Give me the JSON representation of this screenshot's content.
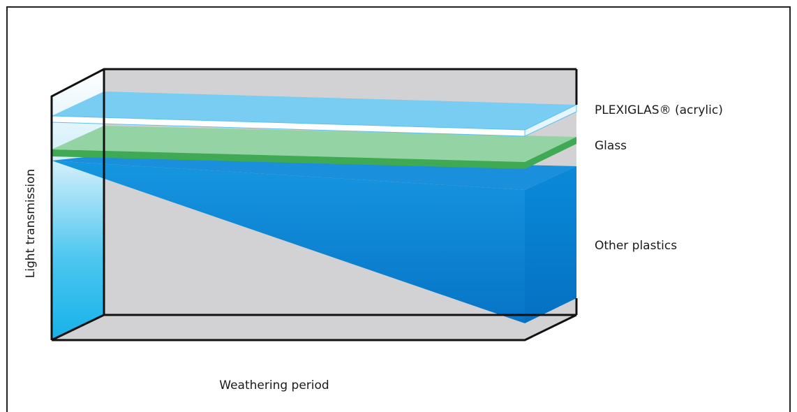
{
  "chart_data": {
    "type": "area",
    "ylabel": "Light transmission",
    "xlabel": "Weathering period",
    "series": [
      {
        "name": "PLEXIGLAS® (acrylic)",
        "trend": "constant",
        "color": "#79cdf3"
      },
      {
        "name": "Glass",
        "trend": "slight decrease",
        "color": "#8dd19f"
      },
      {
        "name": "Other plastics",
        "trend": "strong decrease",
        "color": "#0a86d6"
      }
    ],
    "grid": false,
    "legend": "right"
  },
  "colors": {
    "back_wall": "#d2d2d4",
    "floor": "#d2d2d4",
    "plexiglas_top": "#79cdf3",
    "plexiglas_edge": "#ffffff",
    "glass_top": "#93d3a4",
    "glass_edge": "#3fa953",
    "plastics_top": "#1592dd",
    "plastics_front": "#0a86d6",
    "plastics_side": "#0478c8"
  }
}
